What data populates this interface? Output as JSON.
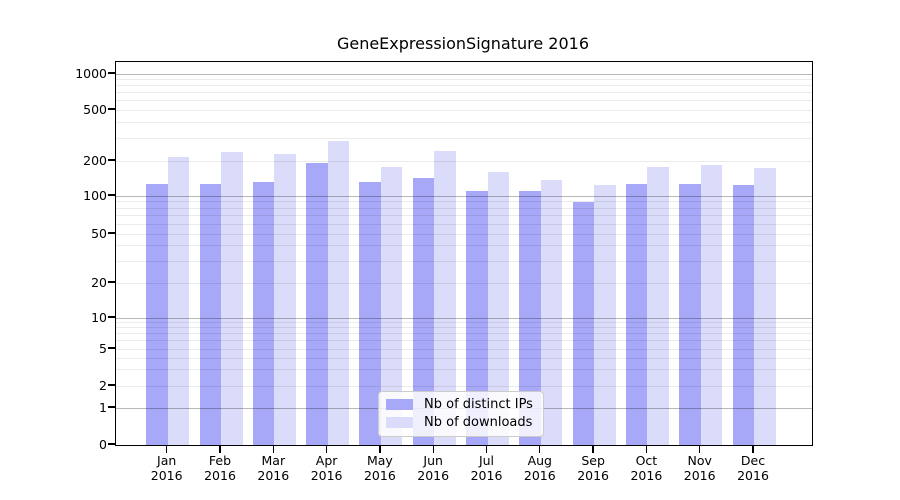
{
  "chart_data": {
    "type": "bar",
    "title": "GeneExpressionSignature 2016",
    "categories": [
      "Jan",
      "Feb",
      "Mar",
      "Apr",
      "May",
      "Jun",
      "Jul",
      "Aug",
      "Sep",
      "Oct",
      "Nov",
      "Dec"
    ],
    "year_label": "2016",
    "series": [
      {
        "name": "Nb of distinct IPs",
        "color": "#a8a8f8",
        "values": [
          128,
          126,
          133,
          193,
          131,
          143,
          111,
          111,
          90,
          128,
          128,
          125
        ]
      },
      {
        "name": "Nb of downloads",
        "color": "#dbdbfa",
        "values": [
          213,
          235,
          227,
          286,
          177,
          238,
          161,
          137,
          125,
          178,
          184,
          174
        ]
      }
    ],
    "yscale": "symlog",
    "yticks": [
      0,
      1,
      2,
      5,
      10,
      20,
      50,
      100,
      200,
      500,
      1000
    ],
    "ylim": [
      0,
      1250
    ],
    "xlabel": "",
    "ylabel": "",
    "grid": "horizontal, minor and major, drawn above bars",
    "legend_position": "lower center"
  }
}
